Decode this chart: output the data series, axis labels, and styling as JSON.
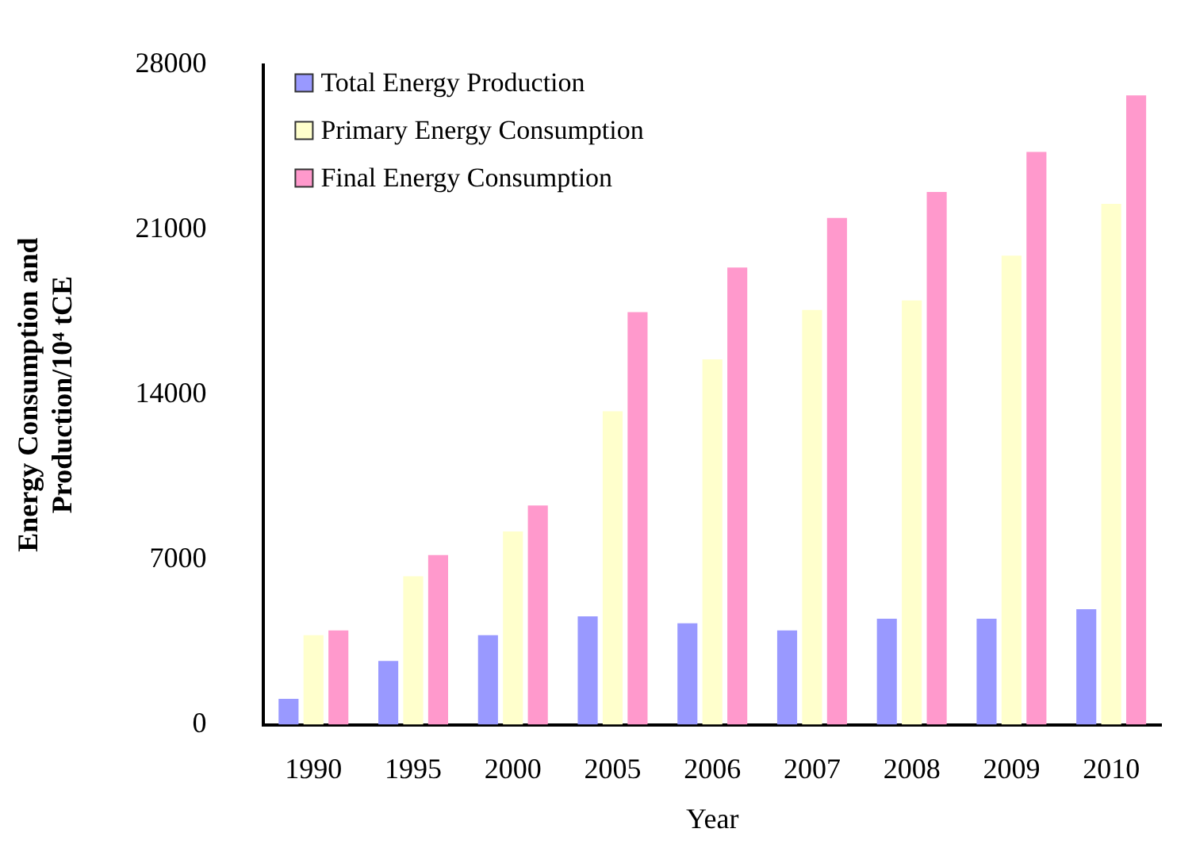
{
  "chart_data": {
    "type": "bar",
    "xlabel": "Year",
    "ylabel": "Energy Consumption and Production/10⁴ tCE",
    "categories": [
      "1990",
      "1995",
      "2000",
      "2005",
      "2006",
      "2007",
      "2008",
      "2009",
      "2010"
    ],
    "series": [
      {
        "name": "Total Energy Production",
        "color": "#9999ff",
        "values": [
          1100,
          2700,
          3800,
          4600,
          4300,
          4000,
          4500,
          4500,
          4900
        ]
      },
      {
        "name": "Primary Energy Consumption",
        "color": "#ffffcc",
        "values": [
          3800,
          6300,
          8200,
          13300,
          15500,
          17600,
          18000,
          19900,
          22100
        ]
      },
      {
        "name": "Final Energy Consumption",
        "color": "#ff99cc",
        "values": [
          4000,
          7200,
          9300,
          17500,
          19400,
          21500,
          22600,
          24300,
          26700
        ]
      }
    ],
    "ylim": [
      0,
      28000
    ],
    "yticks": [
      0,
      7000,
      14000,
      21000,
      28000
    ],
    "grid": false,
    "legend": "top left"
  }
}
